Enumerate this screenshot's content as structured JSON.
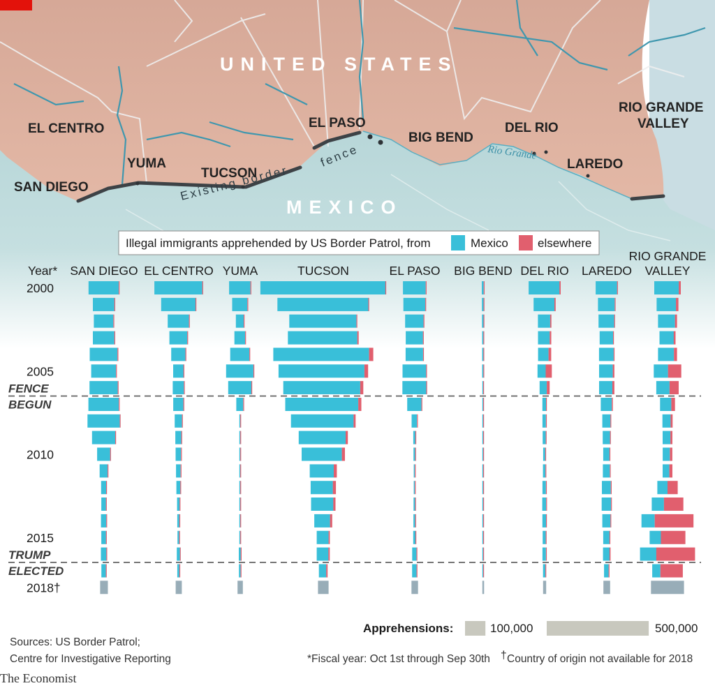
{
  "map": {
    "country_us": "UNITED STATES",
    "country_mx": "MEXICO",
    "fence_label_line1": "Existing border",
    "fence_label_line2": "fence",
    "river_label": "Rio Grande",
    "sector_labels": [
      "EL CENTRO",
      "YUMA",
      "SAN DIEGO",
      "TUCSON",
      "EL PASO",
      "BIG BEND",
      "DEL RIO",
      "LAREDO",
      "RIO GRANDE",
      "VALLEY"
    ]
  },
  "legend": {
    "title": "Illegal immigrants apprehended by US Border Patrol, from",
    "mexico_label": "Mexico",
    "elsewhere_label": "elsewhere",
    "mexico_color": "#39bfd9",
    "elsewhere_color": "#e15f6e"
  },
  "scale": {
    "title": "Apprehensions:",
    "small_label": "100,000",
    "large_label": "500,000",
    "color": "#c8c8be"
  },
  "notes": {
    "sources_line1": "Sources: US Border Patrol;",
    "sources_line2": "Centre for Investigative Reporting",
    "footnote_fiscal": "*Fiscal year: Oct 1st through Sep 30th",
    "footnote_dagger": "Country of origin not available for 2018",
    "dagger": "†",
    "brand": "The Economist"
  },
  "chart_data": {
    "type": "bar",
    "layout": "butterfly bars per sector, one row per fiscal year",
    "year_axis_title": "Year*",
    "year_tick_labels": [
      "2000",
      "2005",
      "2010",
      "2015",
      "2018†"
    ],
    "years": [
      2000,
      2001,
      2002,
      2003,
      2004,
      2005,
      2006,
      2007,
      2008,
      2009,
      2010,
      2011,
      2012,
      2013,
      2014,
      2015,
      2016,
      2017,
      2018
    ],
    "events": [
      {
        "label_line1": "FENCE",
        "label_line2": "BEGUN",
        "between_years": [
          2006,
          2007
        ]
      },
      {
        "label_line1": "TRUMP",
        "label_line2": "ELECTED",
        "between_years": [
          2016,
          2017
        ]
      }
    ],
    "colors": {
      "mexico": "#39bfd9",
      "elsewhere": "#e15f6e",
      "unknown": "#98adb8"
    },
    "units": "apprehensions",
    "series": [
      {
        "name": "SAN DIEGO",
        "mexico": [
          151000,
          109000,
          99000,
          109000,
          136000,
          124000,
          139000,
          150000,
          160000,
          116000,
          66000,
          41000,
          27000,
          25000,
          26000,
          24000,
          28000,
          23000
        ],
        "elsewhere": [
          681,
          681,
          681,
          681,
          4550,
          2070,
          3570,
          3000,
          2000,
          2000,
          2000,
          2000,
          2000,
          2000,
          4000,
          3000,
          3000,
          3000
        ],
        "total_2018": 38000
      },
      {
        "name": "EL CENTRO",
        "mexico": [
          238000,
          172000,
          107000,
          91000,
          73000,
          54000,
          58000,
          53000,
          38000,
          33000,
          30000,
          26000,
          23000,
          16000,
          14000,
          12000,
          18000,
          14000
        ],
        "elsewhere": [
          1000,
          500,
          1000,
          1000,
          1000,
          1000,
          1000,
          1000,
          2000,
          500,
          500,
          500,
          500,
          500,
          500,
          500,
          1000,
          500
        ],
        "total_2018": 30000
      },
      {
        "name": "YUMA",
        "mexico": [
          108000,
          78000,
          42000,
          56000,
          97000,
          136000,
          115000,
          37000,
          8000,
          6000,
          7000,
          5000,
          6000,
          6000,
          5000,
          5000,
          10000,
          10000
        ],
        "elsewhere": [
          500,
          500,
          500,
          500,
          1000,
          2000,
          3000,
          1000,
          500,
          500,
          500,
          500,
          500,
          500,
          1000,
          1000,
          4000,
          2000
        ],
        "total_2018": 26000
      },
      {
        "name": "TUCSON",
        "mexico": [
          616000,
          448000,
          331000,
          340000,
          469000,
          421000,
          377000,
          358000,
          307000,
          230000,
          197000,
          118000,
          109000,
          109000,
          77000,
          58000,
          57000,
          36000
        ],
        "elsewhere": [
          1000,
          2000,
          2000,
          7000,
          21000,
          18000,
          15000,
          15000,
          10000,
          11000,
          15000,
          15000,
          15000,
          11000,
          11000,
          6000,
          7000,
          7000
        ],
        "total_2018": 52000
      },
      {
        "name": "EL PASO",
        "mexico": [
          115000,
          111000,
          94000,
          88000,
          89000,
          118000,
          119000,
          73000,
          30000,
          14000,
          12000,
          9000,
          9000,
          11000,
          12000,
          14000,
          22000,
          22000
        ],
        "elsewhere": [
          500,
          500,
          500,
          500,
          500,
          2000,
          2000,
          1000,
          500,
          500,
          500,
          500,
          500,
          500,
          1000,
          1000,
          3000,
          4000
        ],
        "total_2018": 32000
      },
      {
        "name": "BIG BEND",
        "mexico": [
          13000,
          12000,
          11000,
          10000,
          10000,
          10000,
          7000,
          6000,
          5000,
          6000,
          5000,
          4000,
          4000,
          3000,
          4000,
          5000,
          6000,
          6000
        ],
        "elsewhere": [
          500,
          500,
          500,
          500,
          500,
          500,
          500,
          500,
          500,
          500,
          500,
          500,
          500,
          500,
          500,
          1000,
          1000,
          1000
        ],
        "total_2018": 8000
      },
      {
        "name": "DEL RIO",
        "mexico": [
          151000,
          102000,
          60000,
          57000,
          51000,
          40000,
          35000,
          20000,
          19000,
          17000,
          14000,
          16000,
          18000,
          20000,
          19000,
          17000,
          18000,
          12000
        ],
        "elsewhere": [
          6000,
          6000,
          6000,
          8000,
          13000,
          30000,
          14000,
          2000,
          2000,
          2000,
          500,
          500,
          3000,
          3000,
          3000,
          2000,
          3000,
          4000
        ],
        "total_2018": 15000
      },
      {
        "name": "LAREDO",
        "mexico": [
          106000,
          84000,
          78000,
          67000,
          72000,
          67000,
          65000,
          54000,
          42000,
          38000,
          33000,
          36000,
          45000,
          47000,
          40000,
          32000,
          32000,
          24000
        ],
        "elsewhere": [
          3000,
          2000,
          3000,
          3000,
          4000,
          8000,
          10000,
          5000,
          2000,
          2000,
          2000,
          2000,
          3000,
          3000,
          4000,
          3000,
          5000,
          3000
        ],
        "total_2018": 33000
      },
      {
        "name": "RIO GRANDE VALLEY",
        "mexico": [
          120000,
          95000,
          83000,
          70000,
          78000,
          70000,
          65000,
          55000,
          40000,
          38000,
          35000,
          33000,
          50000,
          60000,
          65000,
          55000,
          80000,
          40000
        ],
        "elsewhere": [
          10000,
          12000,
          10000,
          9000,
          15000,
          65000,
          45000,
          18000,
          10000,
          10000,
          12000,
          15000,
          50000,
          95000,
          190000,
          120000,
          190000,
          110000
        ],
        "total_2018": 162000
      }
    ]
  }
}
